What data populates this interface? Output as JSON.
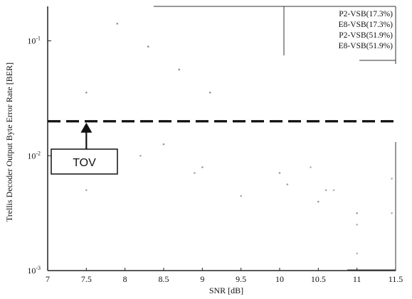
{
  "chart_data": {
    "type": "line",
    "title": "",
    "xlabel": "SNR [dB]",
    "ylabel": "Trellis Decoder Output Byte Error Rate [BER]",
    "xlim": [
      7,
      11.5
    ],
    "ylim_log10": [
      -3,
      -0.7
    ],
    "y_scale": "log",
    "grid": false,
    "x_ticks": [
      {
        "value": 7,
        "label": "7"
      },
      {
        "value": 7.5,
        "label": "7.5"
      },
      {
        "value": 8,
        "label": "8"
      },
      {
        "value": 8.5,
        "label": "8.5"
      },
      {
        "value": 9,
        "label": "9"
      },
      {
        "value": 9.5,
        "label": "9.5"
      },
      {
        "value": 10,
        "label": "10"
      },
      {
        "value": 10.5,
        "label": "10.5"
      },
      {
        "value": 11,
        "label": "11"
      },
      {
        "value": 11.5,
        "label": "11.5"
      }
    ],
    "y_ticks": [
      {
        "log10": -1,
        "base": "10",
        "exp": "-1"
      },
      {
        "log10": -2,
        "base": "10",
        "exp": "-2"
      },
      {
        "log10": -3,
        "base": "10",
        "exp": "-3"
      }
    ],
    "legend": {
      "placement": "top-right",
      "entries": [
        "P2-VSB(17.3%)",
        "E8-VSB(17.3%)",
        "P2-VSB(51.9%)",
        "E8-VSB(51.9%)"
      ]
    },
    "threshold": {
      "name": "TOV",
      "log10": -1.7,
      "style": "dashed"
    },
    "annotation": {
      "text": "TOV",
      "arrow_x": 7.5,
      "arrow_log10": -1.7
    }
  },
  "series": [
    {
      "name": "P2-VSB(17.3%)",
      "color": "#555555",
      "points": [
        [
          7.5,
          -1.45
        ],
        [
          7.9,
          -0.85
        ],
        [
          8.3,
          -1.05
        ],
        [
          8.7,
          -1.25
        ],
        [
          9.1,
          -1.45
        ],
        [
          9.5,
          -1.7
        ]
      ]
    },
    {
      "name": "E8-VSB(17.3%)",
      "color": "#777777",
      "points": [
        [
          7.5,
          -2.3
        ],
        [
          8.2,
          -2.0
        ],
        [
          8.9,
          -2.15
        ],
        [
          9.5,
          -2.35
        ],
        [
          10.1,
          -2.25
        ],
        [
          10.6,
          -2.3
        ]
      ]
    },
    {
      "name": "P2-VSB(51.9%)",
      "color": "#666666",
      "points": [
        [
          8.5,
          -1.9
        ],
        [
          9.0,
          -2.1
        ],
        [
          10.0,
          -2.15
        ],
        [
          10.5,
          -2.4
        ],
        [
          11.0,
          -2.5
        ]
      ]
    },
    {
      "name": "E8-VSB(51.9%)",
      "color": "#888888",
      "points": [
        [
          10.4,
          -2.1
        ],
        [
          10.7,
          -2.3
        ],
        [
          11.0,
          -2.6
        ],
        [
          11.0,
          -2.85
        ],
        [
          11.45,
          -2.2
        ],
        [
          11.45,
          -2.5
        ]
      ]
    }
  ]
}
